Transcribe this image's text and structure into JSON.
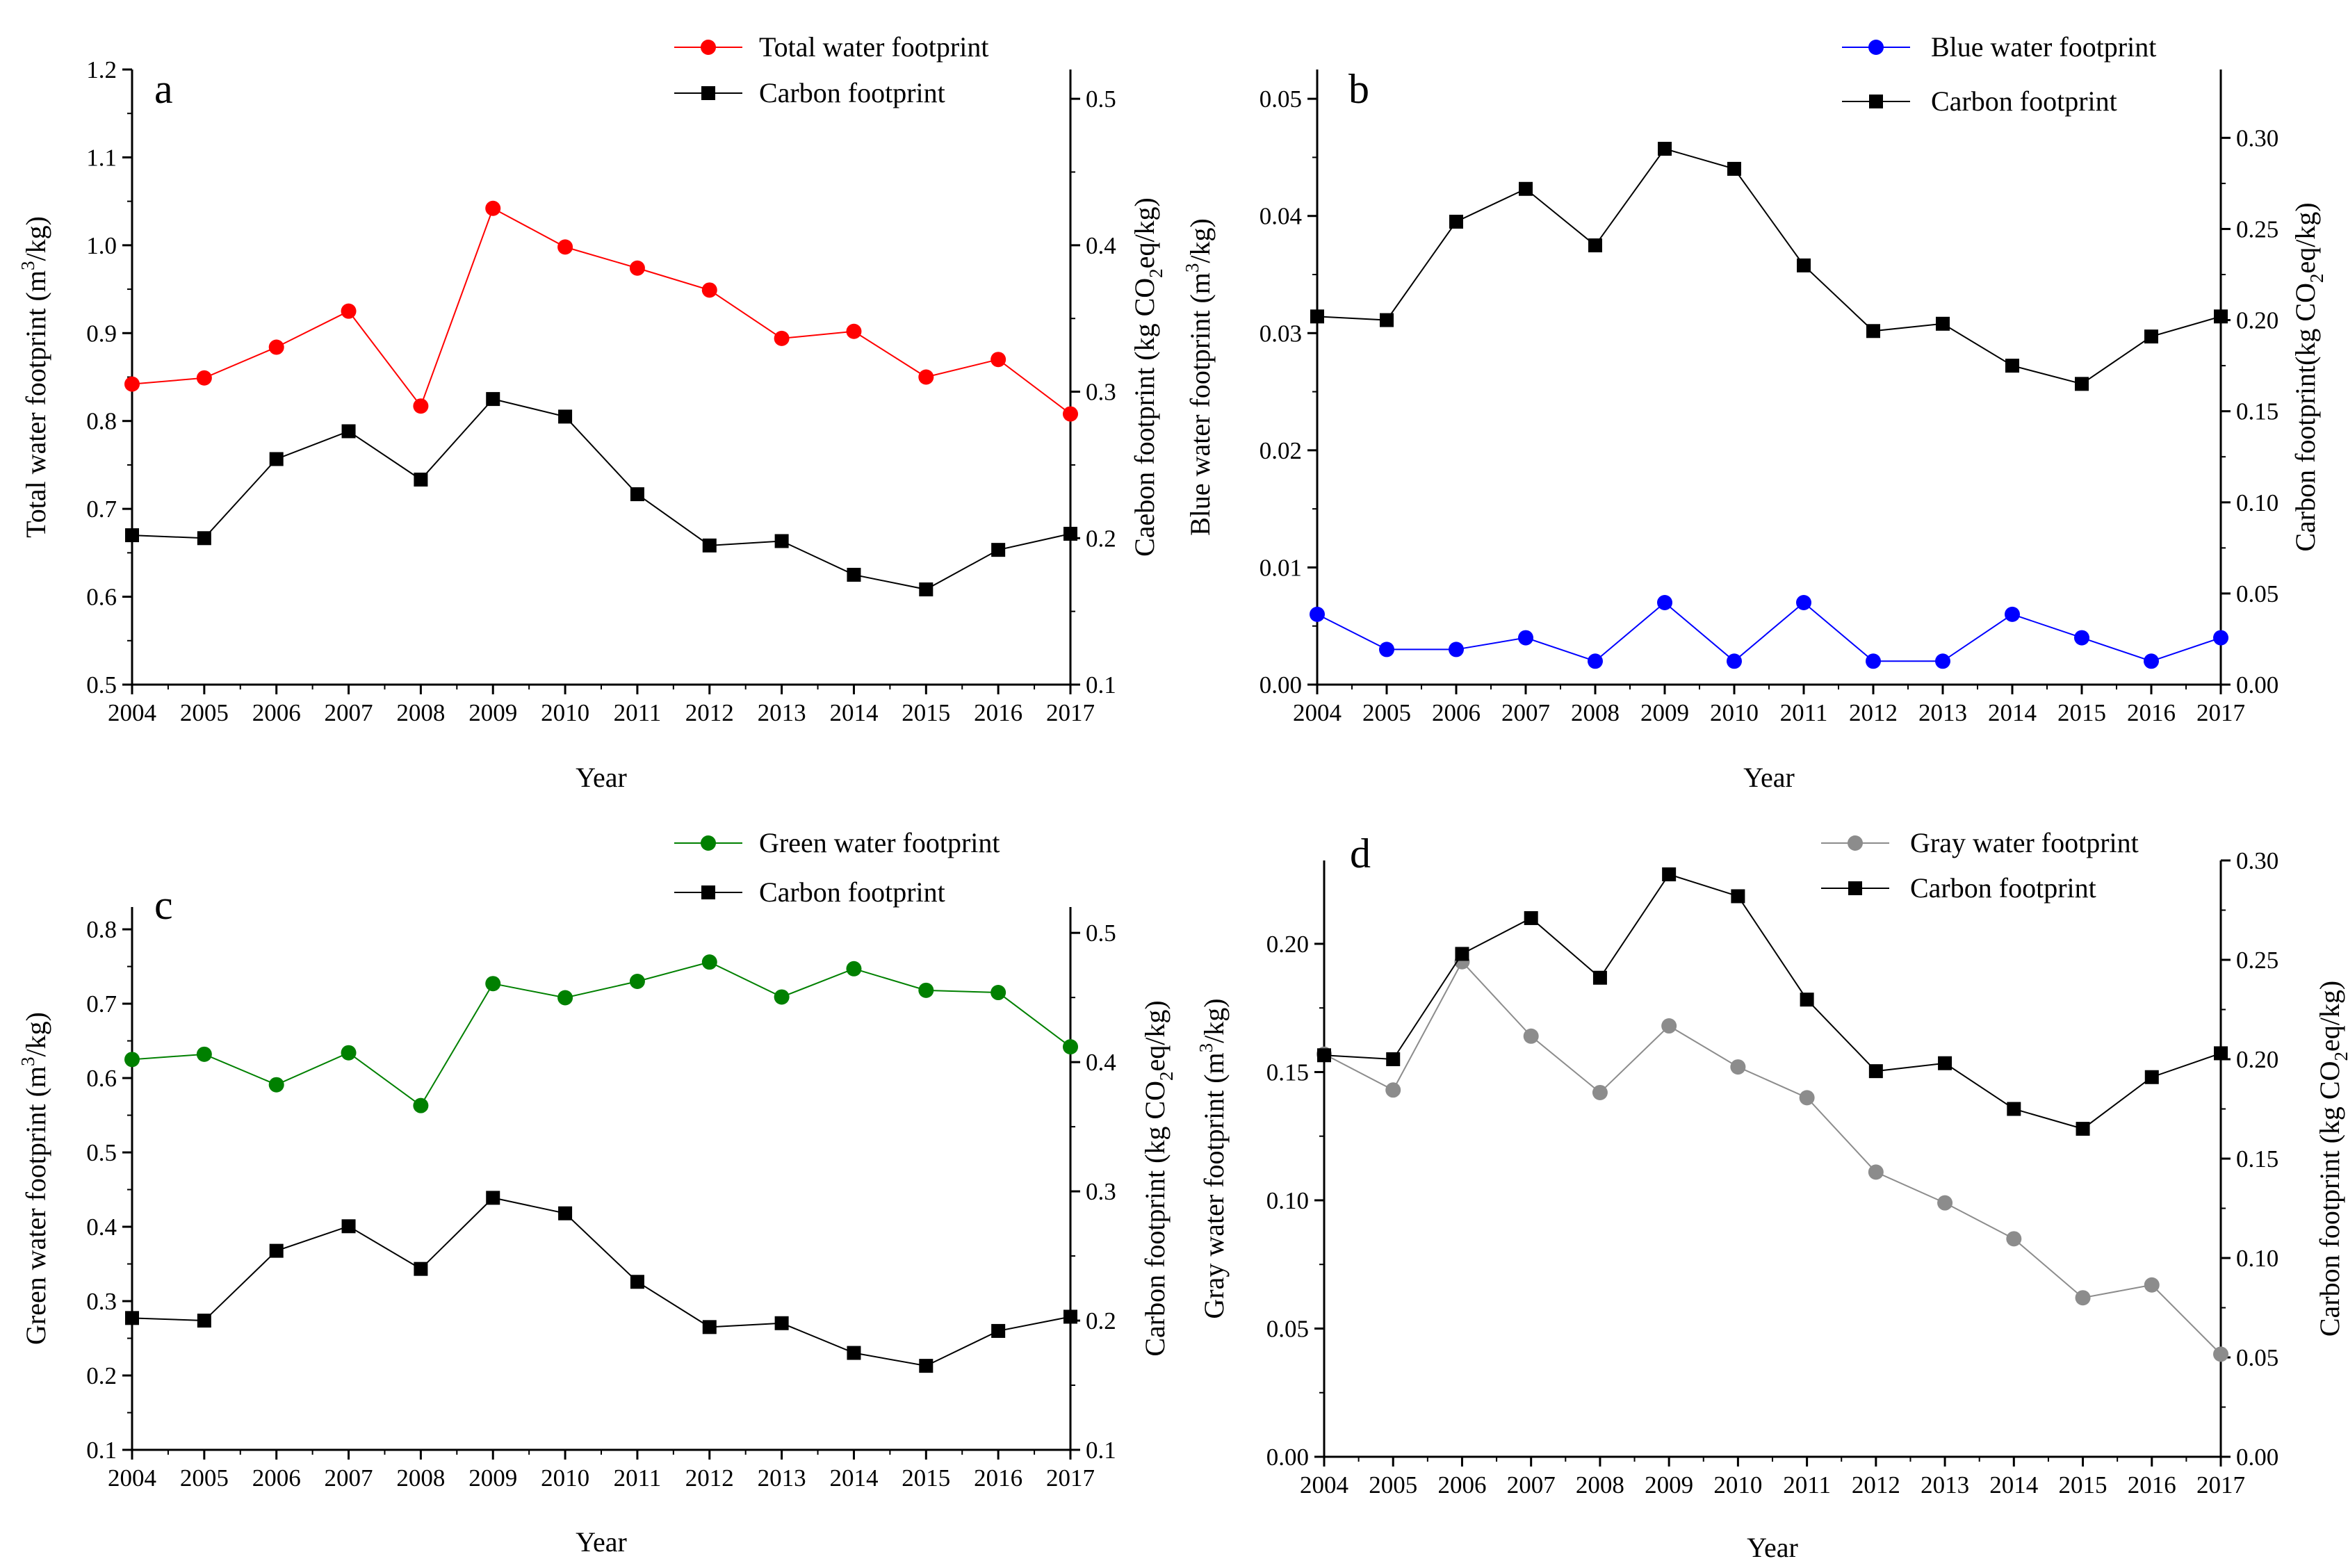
{
  "chart_data": [
    {
      "type": "line",
      "panel_label": "a",
      "xlabel": "Year",
      "ylabel_left": {
        "pre": "Total water footprint (m",
        "sup": "3",
        "post": "/kg)"
      },
      "ylabel_right": {
        "pre": "Caebon footprint (kg CO",
        "sub": "2",
        "post": "eq/kg)"
      },
      "x": [
        "2004",
        "2005",
        "2006",
        "2007",
        "2008",
        "2009",
        "2010",
        "2011",
        "2012",
        "2013",
        "2014",
        "2015",
        "2016",
        "2017"
      ],
      "ylim_left": [
        0.5,
        1.2
      ],
      "yticks_left": [
        "0.5",
        "0.6",
        "0.7",
        "0.8",
        "0.9",
        "1.0",
        "1.1",
        "1.2"
      ],
      "ylim_right": [
        0.1,
        0.52
      ],
      "yticks_right": [
        "0.1",
        "0.2",
        "0.3",
        "0.4",
        "0.5"
      ],
      "legend_position": "top-center",
      "series": [
        {
          "name": "Total water footprint",
          "axis": "left",
          "marker": "circle",
          "color": "#ff0000",
          "values": [
            0.842,
            0.849,
            0.884,
            0.925,
            0.817,
            1.042,
            0.998,
            0.974,
            0.949,
            0.894,
            0.902,
            0.85,
            0.87,
            0.808
          ]
        },
        {
          "name": "Carbon footprint",
          "axis": "right",
          "marker": "square",
          "color": "#000000",
          "values": [
            0.202,
            0.2,
            0.254,
            0.273,
            0.24,
            0.295,
            0.283,
            0.23,
            0.195,
            0.198,
            0.175,
            0.165,
            0.192,
            0.203
          ]
        }
      ]
    },
    {
      "type": "line",
      "panel_label": "b",
      "xlabel": "Year",
      "ylabel_left": {
        "pre": "Blue water footprint (m",
        "sup": "3",
        "post": "/kg)"
      },
      "ylabel_right": {
        "pre": "Carbon footprint(kg CO",
        "sub": "2",
        "post": "eq/kg)"
      },
      "x": [
        "2004",
        "2005",
        "2006",
        "2007",
        "2008",
        "2009",
        "2010",
        "2011",
        "2012",
        "2013",
        "2014",
        "2015",
        "2016",
        "2017"
      ],
      "ylim_left": [
        0,
        0.0525
      ],
      "yticks_left": [
        "0.00",
        "0.01",
        "0.02",
        "0.03",
        "0.04",
        "0.05"
      ],
      "ylim_right": [
        0,
        0.3375
      ],
      "yticks_right": [
        "0.00",
        "0.05",
        "0.10",
        "0.15",
        "0.20",
        "0.25",
        "0.30"
      ],
      "legend_position": "top-right",
      "series": [
        {
          "name": "Blue water footprint",
          "axis": "left",
          "marker": "circle",
          "color": "#0000ff",
          "values": [
            0.006,
            0.003,
            0.003,
            0.004,
            0.002,
            0.007,
            0.002,
            0.007,
            0.002,
            0.002,
            0.006,
            0.004,
            0.002,
            0.004
          ]
        },
        {
          "name": "Carbon footprint",
          "axis": "right",
          "marker": "square",
          "color": "#000000",
          "values": [
            0.202,
            0.2,
            0.254,
            0.272,
            0.241,
            0.294,
            0.283,
            0.23,
            0.194,
            0.198,
            0.175,
            0.165,
            0.191,
            0.202
          ]
        }
      ]
    },
    {
      "type": "line",
      "panel_label": "c",
      "xlabel": "Year",
      "ylabel_left": {
        "pre": "Green water footprint (m",
        "sup": "3",
        "post": "/kg)"
      },
      "ylabel_right": {
        "pre": "Carbon footprint (kg CO",
        "sub": "2",
        "post": "eq/kg)"
      },
      "x": [
        "2004",
        "2005",
        "2006",
        "2007",
        "2008",
        "2009",
        "2010",
        "2011",
        "2012",
        "2013",
        "2014",
        "2015",
        "2016",
        "2017"
      ],
      "ylim_left": [
        0.1,
        0.83
      ],
      "yticks_left": [
        "0.1",
        "0.2",
        "0.3",
        "0.4",
        "0.5",
        "0.6",
        "0.7",
        "0.8"
      ],
      "ylim_right": [
        0.1,
        0.52
      ],
      "yticks_right": [
        "0.1",
        "0.2",
        "0.3",
        "0.4",
        "0.5"
      ],
      "legend_position": "top-center",
      "series": [
        {
          "name": "Green water footprint",
          "axis": "left",
          "marker": "circle",
          "color": "#008000",
          "values": [
            0.625,
            0.632,
            0.591,
            0.634,
            0.563,
            0.727,
            0.708,
            0.73,
            0.756,
            0.709,
            0.747,
            0.718,
            0.715,
            0.642
          ]
        },
        {
          "name": "Carbon footprint",
          "axis": "right",
          "marker": "square",
          "color": "#000000",
          "values": [
            0.202,
            0.2,
            0.254,
            0.273,
            0.24,
            0.295,
            0.283,
            0.23,
            0.195,
            0.198,
            0.175,
            0.165,
            0.192,
            0.203
          ]
        }
      ]
    },
    {
      "type": "line",
      "panel_label": "d",
      "xlabel": "Year",
      "ylabel_left": {
        "pre": "Gray water footprint (m",
        "sup": "3",
        "post": "/kg)"
      },
      "ylabel_right": {
        "pre": "Carbon footprint (kg CO",
        "sub": "2",
        "post": "eq/kg)"
      },
      "x": [
        "2004",
        "2005",
        "2006",
        "2007",
        "2008",
        "2009",
        "2010",
        "2011",
        "2012",
        "2013",
        "2014",
        "2015",
        "2016",
        "2017"
      ],
      "ylim_left": [
        0,
        0.2325
      ],
      "yticks_left": [
        "0.00",
        "0.05",
        "0.10",
        "0.15",
        "0.20"
      ],
      "ylim_right": [
        0,
        0.3
      ],
      "yticks_right": [
        "0.00",
        "0.05",
        "0.10",
        "0.15",
        "0.20",
        "0.25",
        "0.30"
      ],
      "legend_position": "top-center",
      "series": [
        {
          "name": "Gray water footprint",
          "axis": "left",
          "marker": "circle",
          "color": "#8c8c8c",
          "values": [
            0.157,
            0.143,
            0.193,
            0.164,
            0.142,
            0.168,
            0.152,
            0.14,
            0.111,
            0.099,
            0.085,
            0.062,
            0.067,
            0.04
          ]
        },
        {
          "name": "Carbon footprint",
          "axis": "right",
          "marker": "square",
          "color": "#000000",
          "values": [
            0.202,
            0.2,
            0.253,
            0.271,
            0.241,
            0.293,
            0.282,
            0.23,
            0.194,
            0.198,
            0.175,
            0.165,
            0.191,
            0.203
          ]
        }
      ]
    }
  ]
}
